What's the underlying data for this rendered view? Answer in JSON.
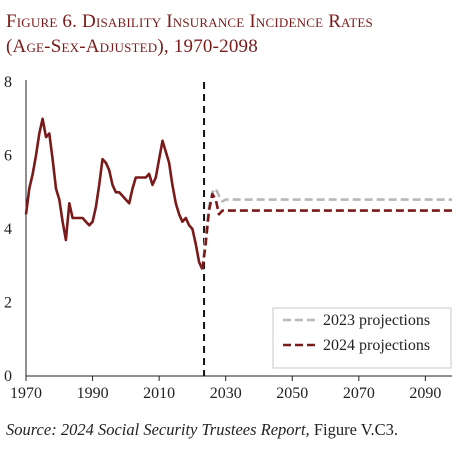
{
  "figure": {
    "title_line1": "Figure 6. Disability Insurance Incidence Rates",
    "title_line2": "(Age-Sex-Adjusted), 1970-2098",
    "source_label": "Source:",
    "source_italic": "2024 Social Security Trustees Report,",
    "source_rest": "Figure V.C3."
  },
  "colors": {
    "historical": "#7a1a1a",
    "proj2023": "#b8b8b8",
    "proj2024": "#7a1a1a",
    "divider": "#111111"
  },
  "chart_data": {
    "type": "line",
    "title": "Figure 6. Disability Insurance Incidence Rates (Age-Sex-Adjusted), 1970-2098",
    "xlabel": "",
    "ylabel": "",
    "xlim": [
      1970,
      2098
    ],
    "ylim": [
      0,
      8
    ],
    "xticks": [
      1970,
      1990,
      2010,
      2030,
      2050,
      2070,
      2090
    ],
    "yticks": [
      0,
      2,
      4,
      6,
      8
    ],
    "grid": false,
    "vertical_marker_x": 2023.5,
    "legend_position": "bottom-right",
    "legend": [
      "2023 projections",
      "2024 projections"
    ],
    "series": [
      {
        "style": "solid",
        "x": [
          1970,
          1971,
          1972,
          1973,
          1974,
          1975,
          1976,
          1977,
          1978,
          1979,
          1980,
          1981,
          1982,
          1983,
          1984,
          1985,
          1986,
          1987,
          1988,
          1989,
          1990,
          1991,
          1992,
          1993,
          1994,
          1995,
          1996,
          1997,
          1998,
          1999,
          2000,
          2001,
          2002,
          2003,
          2004,
          2005,
          2006,
          2007,
          2008,
          2009,
          2010,
          2011,
          2012,
          2013,
          2014,
          2015,
          2016,
          2017,
          2018,
          2019,
          2020,
          2021,
          2022,
          2023
        ],
        "y": [
          4.4,
          5.1,
          5.5,
          6.0,
          6.6,
          7.0,
          6.5,
          6.6,
          5.9,
          5.1,
          4.8,
          4.2,
          3.7,
          4.7,
          4.3,
          4.3,
          4.3,
          4.3,
          4.2,
          4.1,
          4.2,
          4.6,
          5.2,
          5.9,
          5.8,
          5.6,
          5.2,
          5.0,
          5.0,
          4.9,
          4.8,
          4.7,
          5.1,
          5.4,
          5.4,
          5.4,
          5.4,
          5.5,
          5.2,
          5.4,
          5.9,
          6.4,
          6.1,
          5.8,
          5.2,
          4.7,
          4.4,
          4.2,
          4.3,
          4.1,
          4.0,
          3.6,
          3.1,
          2.9
        ]
      },
      {
        "name": "2023 projections",
        "style": "dashed",
        "x": [
          2023,
          2024,
          2025,
          2026,
          2027,
          2028,
          2029,
          2030,
          2032,
          2035,
          2040,
          2050,
          2060,
          2070,
          2080,
          2090,
          2098
        ],
        "y": [
          2.9,
          3.8,
          4.6,
          5.0,
          5.1,
          4.9,
          4.75,
          4.8,
          4.8,
          4.8,
          4.8,
          4.8,
          4.8,
          4.8,
          4.8,
          4.8,
          4.8
        ]
      },
      {
        "name": "2024 projections",
        "style": "dashed",
        "x": [
          2023,
          2024,
          2025,
          2026,
          2027,
          2028,
          2029,
          2030,
          2032,
          2035,
          2040,
          2050,
          2060,
          2070,
          2080,
          2090,
          2098
        ],
        "y": [
          2.9,
          3.6,
          4.5,
          4.95,
          4.8,
          4.4,
          4.5,
          4.5,
          4.5,
          4.5,
          4.5,
          4.5,
          4.5,
          4.5,
          4.5,
          4.5,
          4.5
        ]
      }
    ]
  }
}
